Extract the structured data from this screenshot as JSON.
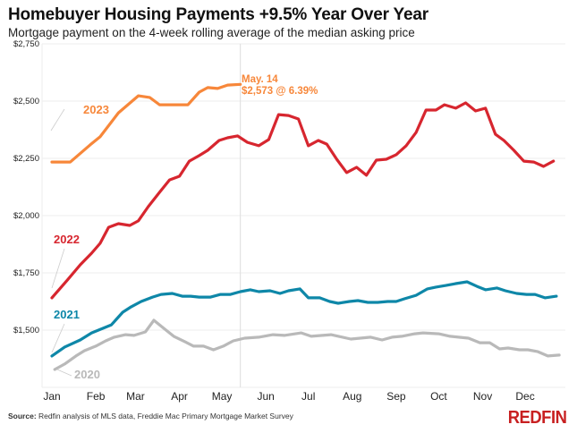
{
  "header": {
    "title": "Homebuyer Housing Payments +9.5% Year Over Year",
    "subtitle": "Mortgage payment on the 4-week rolling average of the median asking price"
  },
  "footer": {
    "source_label": "Source:",
    "source_text": " Redfin analysis of MLS data, Freddie Mac Primary Mortgage Market Survey",
    "logo": "REDFIN"
  },
  "chart_data": {
    "type": "line",
    "title": "Homebuyer Housing Payments +9.5% Year Over Year",
    "subtitle": "Mortgage payment on the 4-week rolling average of the median asking price",
    "xlabel": "",
    "ylabel": "",
    "ylim": [
      1250,
      2750
    ],
    "y_ticks": [
      2750,
      2500,
      2250,
      2000,
      1750,
      1500
    ],
    "y_tick_labels": [
      "$2,750",
      "$2,500",
      "$2,250",
      "$2,000",
      "$1,750",
      "$1,500"
    ],
    "x_tick_labels": [
      "Jan",
      "Feb",
      "Mar",
      "Apr",
      "May",
      "Jun",
      "Jul",
      "Aug",
      "Sep",
      "Oct",
      "Nov",
      "Dec"
    ],
    "grid": true,
    "legend": "inline labels",
    "reference_line": "05-14",
    "annotation": {
      "line1": "May. 14",
      "line2": "$2,573 @ 6.39%",
      "color": "#f7873a"
    },
    "series": [
      {
        "name": "2020",
        "color": "#b9b9b9",
        "x": [
          "01-03",
          "01-10",
          "01-18",
          "01-24",
          "02-01",
          "02-08",
          "02-14",
          "02-22",
          "02-28",
          "03-08",
          "03-14",
          "03-21",
          "03-28",
          "04-05",
          "04-11",
          "04-18",
          "04-25",
          "05-02",
          "05-09",
          "05-17",
          "05-27",
          "06-06",
          "06-14",
          "06-26",
          "07-03",
          "07-17",
          "07-31",
          "08-14",
          "08-22",
          "08-29",
          "09-05",
          "09-14",
          "09-20",
          "10-01",
          "10-09",
          "10-15",
          "10-22",
          "10-30",
          "11-06",
          "11-13",
          "11-19",
          "11-27",
          "12-03",
          "12-10",
          "12-17",
          "12-25"
        ],
        "values": [
          1328,
          1352,
          1387,
          1410,
          1430,
          1453,
          1469,
          1480,
          1477,
          1492,
          1543,
          1508,
          1473,
          1449,
          1430,
          1430,
          1414,
          1430,
          1453,
          1465,
          1469,
          1480,
          1477,
          1488,
          1473,
          1480,
          1461,
          1469,
          1457,
          1469,
          1473,
          1484,
          1488,
          1484,
          1473,
          1469,
          1465,
          1445,
          1445,
          1418,
          1422,
          1414,
          1414,
          1406,
          1387,
          1391
        ]
      },
      {
        "name": "2021",
        "color": "#0e87a8",
        "x": [
          "01-01",
          "01-10",
          "01-21",
          "01-29",
          "02-06",
          "02-12",
          "02-20",
          "02-26",
          "03-05",
          "03-13",
          "03-19",
          "03-27",
          "04-03",
          "04-09",
          "04-15",
          "04-23",
          "04-30",
          "05-07",
          "05-14",
          "05-21",
          "05-27",
          "06-04",
          "06-11",
          "06-17",
          "06-25",
          "07-01",
          "07-09",
          "07-16",
          "07-22",
          "07-30",
          "08-05",
          "08-12",
          "08-19",
          "08-26",
          "09-01",
          "09-07",
          "09-15",
          "09-23",
          "09-29",
          "10-06",
          "10-13",
          "10-21",
          "10-28",
          "11-03",
          "11-11",
          "11-17",
          "11-25",
          "12-02",
          "12-08",
          "12-15",
          "12-23"
        ],
        "values": [
          1387,
          1426,
          1457,
          1488,
          1508,
          1523,
          1578,
          1602,
          1625,
          1644,
          1656,
          1660,
          1648,
          1648,
          1644,
          1644,
          1656,
          1656,
          1668,
          1676,
          1668,
          1672,
          1660,
          1672,
          1680,
          1641,
          1641,
          1625,
          1617,
          1625,
          1629,
          1621,
          1621,
          1625,
          1625,
          1637,
          1652,
          1680,
          1688,
          1695,
          1703,
          1711,
          1691,
          1676,
          1684,
          1672,
          1660,
          1656,
          1656,
          1641,
          1648
        ]
      },
      {
        "name": "2022",
        "color": "#d7262f",
        "x": [
          "01-01",
          "01-12",
          "01-21",
          "01-29",
          "02-04",
          "02-10",
          "02-17",
          "02-25",
          "03-03",
          "03-10",
          "03-18",
          "03-25",
          "04-01",
          "04-08",
          "04-15",
          "04-21",
          "04-29",
          "05-05",
          "05-12",
          "05-19",
          "05-27",
          "06-03",
          "06-10",
          "06-17",
          "06-24",
          "07-01",
          "07-08",
          "07-14",
          "07-21",
          "07-28",
          "08-04",
          "08-11",
          "08-18",
          "08-25",
          "09-01",
          "09-08",
          "09-15",
          "09-22",
          "09-29",
          "10-05",
          "10-13",
          "10-20",
          "10-27",
          "11-03",
          "11-10",
          "11-16",
          "11-23",
          "11-30",
          "12-07",
          "12-14",
          "12-21"
        ],
        "values": [
          1641,
          1719,
          1785,
          1836,
          1879,
          1949,
          1965,
          1957,
          1977,
          2039,
          2102,
          2156,
          2172,
          2238,
          2262,
          2285,
          2328,
          2340,
          2348,
          2320,
          2305,
          2332,
          2441,
          2437,
          2422,
          2305,
          2328,
          2312,
          2246,
          2188,
          2211,
          2176,
          2242,
          2246,
          2266,
          2305,
          2363,
          2461,
          2461,
          2484,
          2469,
          2492,
          2457,
          2469,
          2355,
          2328,
          2285,
          2238,
          2234,
          2215,
          2238
        ]
      },
      {
        "name": "2023",
        "color": "#f7873a",
        "x": [
          "01-01",
          "01-14",
          "01-28",
          "02-04",
          "02-17",
          "03-03",
          "03-11",
          "03-18",
          "04-07",
          "04-15",
          "04-21",
          "04-28",
          "05-05",
          "05-14"
        ],
        "values": [
          2234,
          2234,
          2309,
          2344,
          2449,
          2523,
          2516,
          2484,
          2484,
          2539,
          2559,
          2555,
          2570,
          2573
        ]
      }
    ]
  }
}
